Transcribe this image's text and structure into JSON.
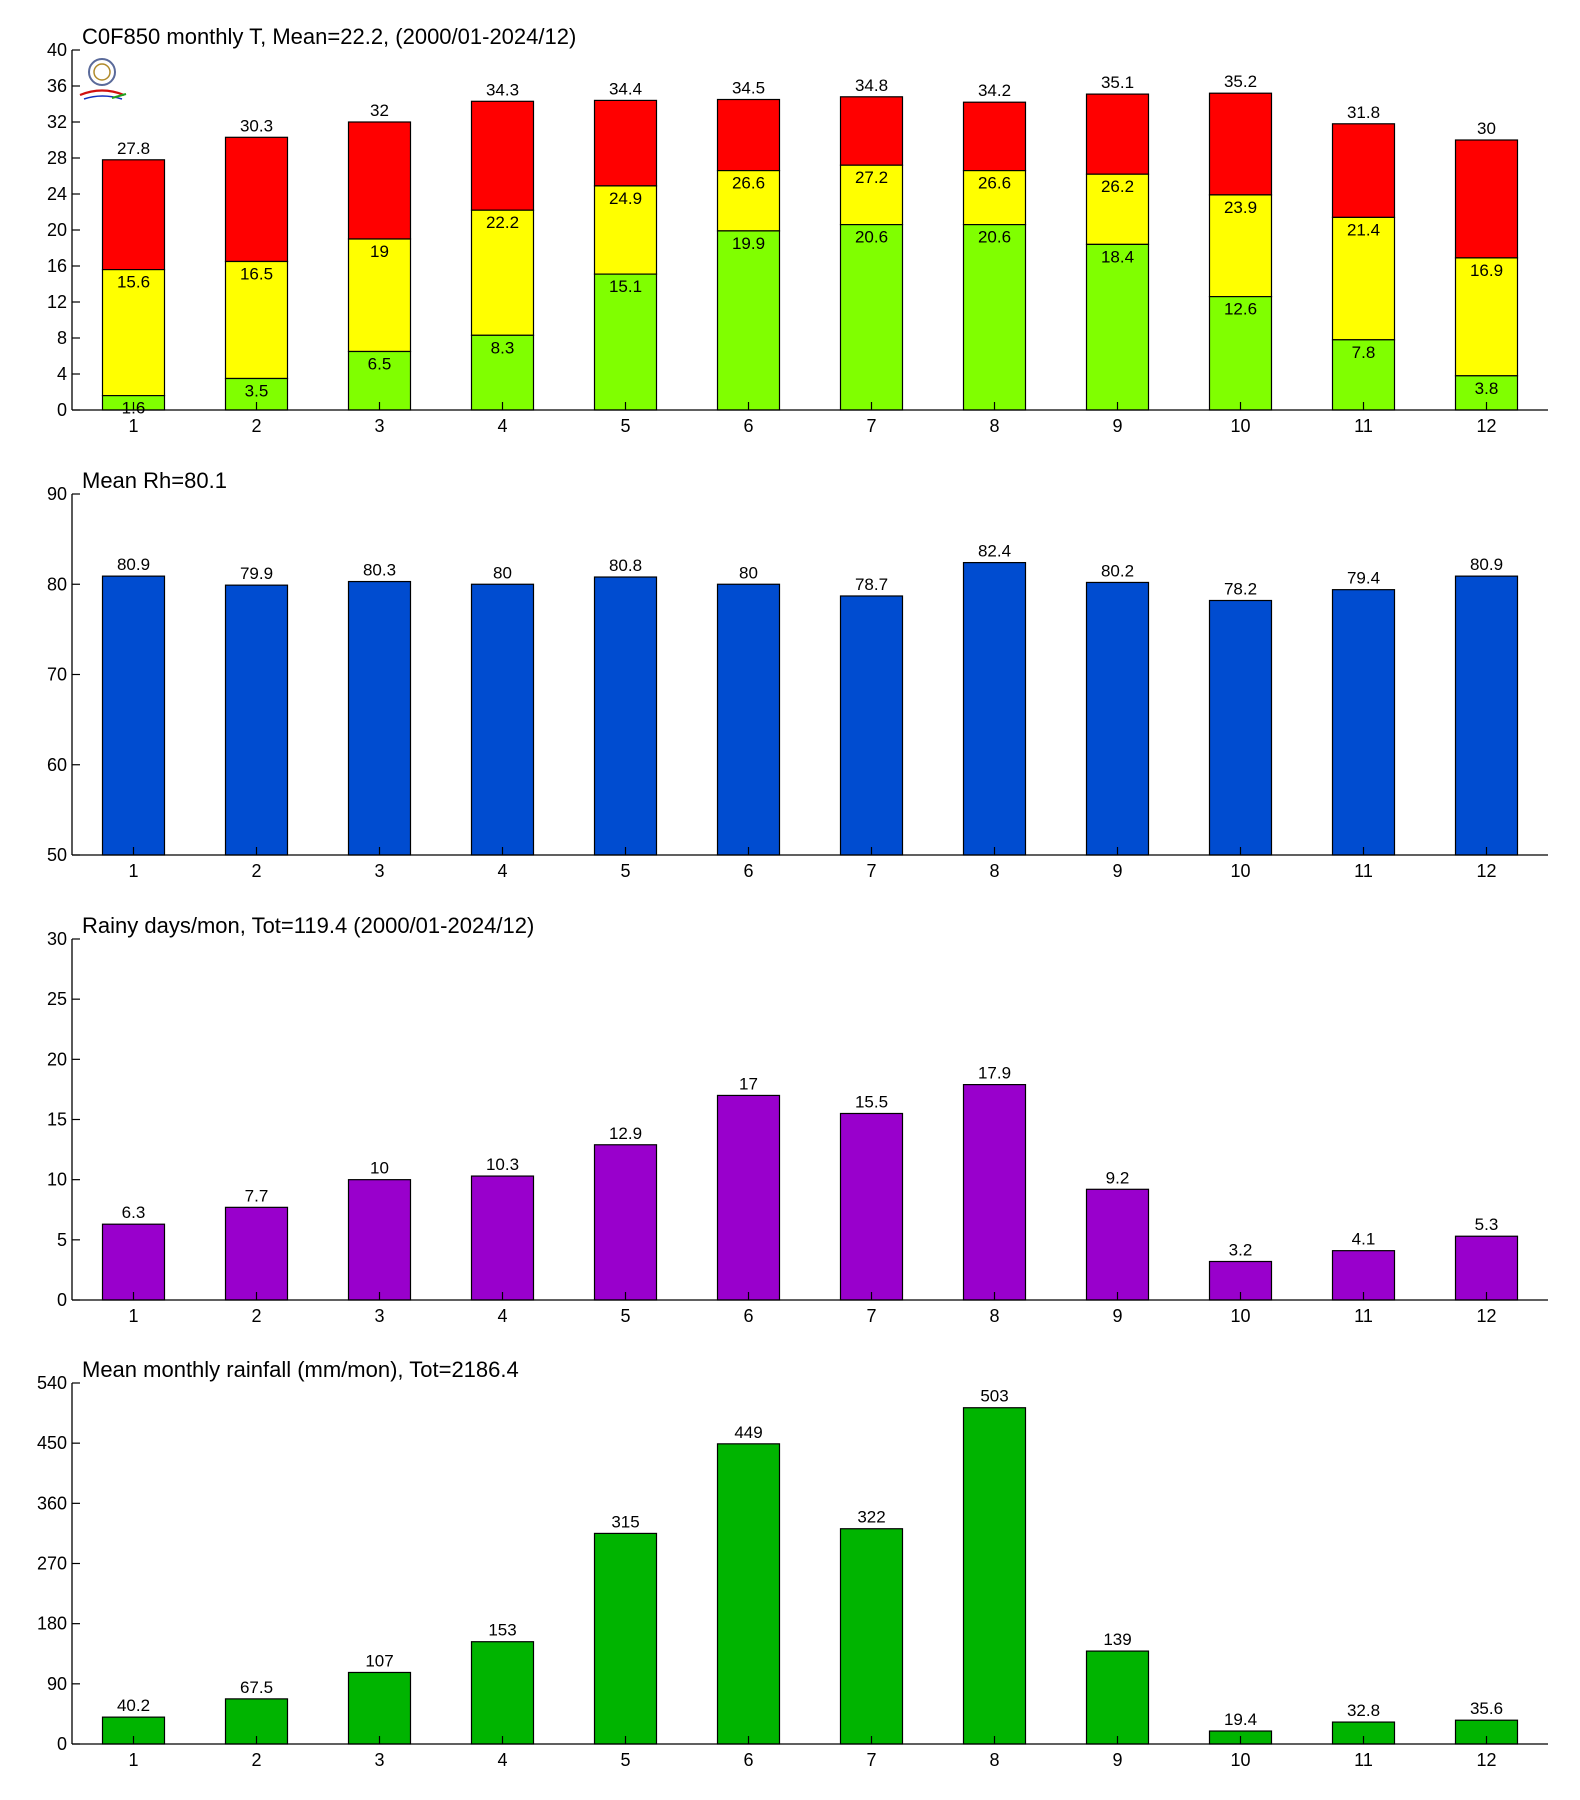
{
  "chart_data": [
    {
      "type": "bar",
      "title": "C0F850 monthly T, Mean=22.2, (2000/01-2024/12)",
      "categories": [
        "1",
        "2",
        "3",
        "4",
        "5",
        "6",
        "7",
        "8",
        "9",
        "10",
        "11",
        "12"
      ],
      "ylim": [
        0,
        40
      ],
      "yticks": [
        0,
        4,
        8,
        12,
        16,
        20,
        24,
        28,
        32,
        36,
        40
      ],
      "stacked_levels": true,
      "series": [
        {
          "values": [
            1.6,
            3.5,
            6.5,
            8.3,
            15.1,
            19.9,
            20.6,
            20.6,
            18.4,
            12.6,
            7.8,
            3.8
          ],
          "color": "#80ff00"
        },
        {
          "values": [
            15.6,
            16.5,
            19,
            22.2,
            24.9,
            26.6,
            27.2,
            26.6,
            26.2,
            23.9,
            21.4,
            16.9
          ],
          "color": "#ffff00"
        },
        {
          "values": [
            27.8,
            30.3,
            32,
            34.3,
            34.4,
            34.5,
            34.8,
            34.2,
            35.1,
            35.2,
            31.8,
            30
          ],
          "color": "#ff0000"
        }
      ],
      "grid": false,
      "has_logo": true
    },
    {
      "type": "bar",
      "title": "Mean Rh=80.1",
      "categories": [
        "1",
        "2",
        "3",
        "4",
        "5",
        "6",
        "7",
        "8",
        "9",
        "10",
        "11",
        "12"
      ],
      "values": [
        80.9,
        79.9,
        80.3,
        80,
        80.8,
        80,
        78.7,
        82.4,
        80.2,
        78.2,
        79.4,
        80.9
      ],
      "ylim": [
        50,
        90
      ],
      "yticks": [
        50,
        60,
        70,
        80,
        90
      ],
      "color": "#004cd0",
      "grid": false
    },
    {
      "type": "bar",
      "title": "Rainy days/mon, Tot=119.4 (2000/01-2024/12)",
      "categories": [
        "1",
        "2",
        "3",
        "4",
        "5",
        "6",
        "7",
        "8",
        "9",
        "10",
        "11",
        "12"
      ],
      "values": [
        6.3,
        7.7,
        10,
        10.3,
        12.9,
        17,
        15.5,
        17.9,
        9.2,
        3.2,
        4.1,
        5.3
      ],
      "ylim": [
        0,
        30
      ],
      "yticks": [
        0,
        5,
        10,
        15,
        20,
        25,
        30
      ],
      "color": "#9900cc",
      "grid": false
    },
    {
      "type": "bar",
      "title": "Mean monthly rainfall (mm/mon), Tot=2186.4",
      "categories": [
        "1",
        "2",
        "3",
        "4",
        "5",
        "6",
        "7",
        "8",
        "9",
        "10",
        "11",
        "12"
      ],
      "values": [
        40.2,
        67.5,
        107,
        153,
        315,
        449,
        322,
        503,
        139,
        19.4,
        32.8,
        35.6
      ],
      "ylim": [
        0,
        540
      ],
      "yticks": [
        0,
        90,
        180,
        270,
        360,
        450,
        540
      ],
      "color": "#00b400",
      "grid": false
    }
  ]
}
